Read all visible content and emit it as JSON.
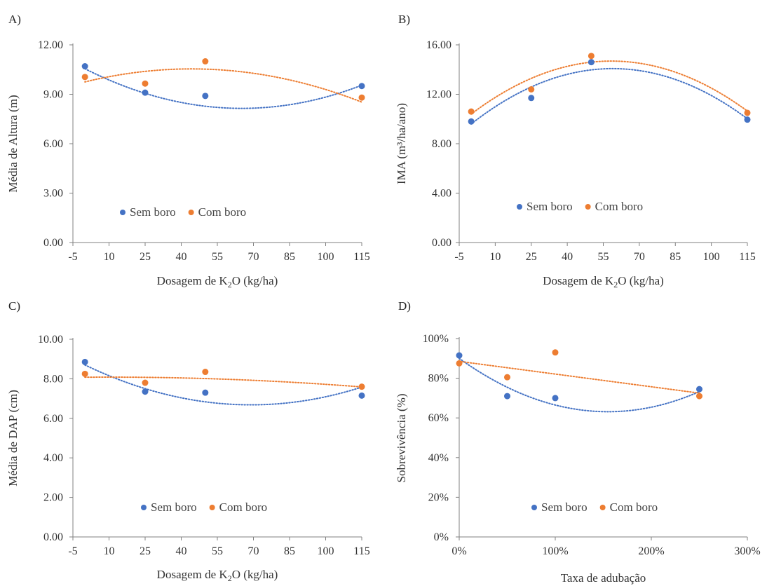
{
  "colors": {
    "sem_boro": "#4472C4",
    "com_boro": "#ED7D31",
    "axis": "#808080"
  },
  "chart_data": [
    {
      "panel": "A)",
      "type": "scatter",
      "xlabel": "Dosagem de K2O (kg/ha)",
      "ylabel": "Média de Altura (m)",
      "xlim": [
        -5,
        115
      ],
      "ylim": [
        0,
        12
      ],
      "x_ticks": [
        "-5",
        "10",
        "25",
        "40",
        "55",
        "70",
        "85",
        "100",
        "115"
      ],
      "x_tick_values": [
        -5,
        10,
        25,
        40,
        55,
        70,
        85,
        100,
        115
      ],
      "y_ticks": [
        "0.00",
        "3.00",
        "6.00",
        "9.00",
        "12.00"
      ],
      "y_tick_values": [
        0,
        3,
        6,
        9,
        12
      ],
      "legend": "bottom",
      "series": [
        {
          "name": "Sem boro",
          "x": [
            0,
            25,
            50,
            115
          ],
          "y": [
            10.7,
            9.1,
            8.9,
            9.5
          ],
          "trend": [
            10.55,
            -0.0738,
            0.000566
          ]
        },
        {
          "name": "Com boro",
          "x": [
            0,
            25,
            50,
            115
          ],
          "y": [
            10.05,
            9.65,
            11.0,
            8.8
          ],
          "trend": [
            9.75,
            0.0357,
            -0.000403
          ]
        }
      ]
    },
    {
      "panel": "B)",
      "type": "scatter",
      "xlabel": "Dosagem de K2O (kg/ha)",
      "ylabel": "IMA  (m³/ha/ano)",
      "xlim": [
        -5,
        115
      ],
      "ylim": [
        0,
        16
      ],
      "x_ticks": [
        "-5",
        "10",
        "25",
        "40",
        "55",
        "70",
        "85",
        "100",
        "115"
      ],
      "x_tick_values": [
        -5,
        10,
        25,
        40,
        55,
        70,
        85,
        100,
        115
      ],
      "y_ticks": [
        "0.00",
        "4.00",
        "8.00",
        "12.00",
        "16.00"
      ],
      "y_tick_values": [
        0,
        4,
        8,
        12,
        16
      ],
      "legend": "bottom",
      "series": [
        {
          "name": "Sem boro",
          "x": [
            0,
            25,
            50,
            115
          ],
          "y": [
            9.8,
            11.7,
            14.6,
            9.95
          ],
          "trend": [
            9.6,
            0.152,
            -0.00129
          ]
        },
        {
          "name": "Com boro",
          "x": [
            0,
            25,
            50,
            115
          ],
          "y": [
            10.6,
            12.4,
            15.1,
            10.5
          ],
          "trend": [
            10.4,
            0.147,
            -0.00126
          ]
        }
      ]
    },
    {
      "panel": "C)",
      "type": "scatter",
      "xlabel": "Dosagem de K2O (kg/ha)",
      "ylabel": "Média de DAP (cm)",
      "xlim": [
        -5,
        115
      ],
      "ylim": [
        0,
        10
      ],
      "x_ticks": [
        "-5",
        "10",
        "25",
        "40",
        "55",
        "70",
        "85",
        "100",
        "115"
      ],
      "x_tick_values": [
        -5,
        10,
        25,
        40,
        55,
        70,
        85,
        100,
        115
      ],
      "y_ticks": [
        "0.00",
        "2.00",
        "4.00",
        "6.00",
        "8.00",
        "10.00"
      ],
      "y_tick_values": [
        0,
        2,
        4,
        6,
        8,
        10
      ],
      "legend": "bottom",
      "series": [
        {
          "name": "Sem boro",
          "x": [
            0,
            25,
            50,
            115
          ],
          "y": [
            8.85,
            7.35,
            7.3,
            7.15
          ],
          "trend": [
            8.7,
            -0.0585,
            0.000424
          ]
        },
        {
          "name": "Com boro",
          "x": [
            0,
            25,
            50,
            115
          ],
          "y": [
            8.25,
            7.8,
            8.35,
            7.6
          ],
          "trend": [
            8.08,
            0.0009,
            -4.5e-05
          ]
        }
      ]
    },
    {
      "panel": "D)",
      "type": "scatter",
      "xlabel": "Taxa de adubação",
      "ylabel": "Sobrevivência (%)",
      "xlim": [
        0,
        3
      ],
      "ylim": [
        0,
        1
      ],
      "x_ticks": [
        "0%",
        "100%",
        "200%",
        "300%"
      ],
      "x_tick_values": [
        0,
        1,
        2,
        3
      ],
      "y_ticks": [
        "0%",
        "20%",
        "40%",
        "60%",
        "80%",
        "100%"
      ],
      "y_tick_values": [
        0,
        0.2,
        0.4,
        0.6,
        0.8,
        1.0
      ],
      "legend": "bottom",
      "series": [
        {
          "name": "Sem boro",
          "x": [
            0,
            0.5,
            1.0,
            2.5
          ],
          "y": [
            0.915,
            0.71,
            0.7,
            0.745
          ],
          "trend": [
            0.9,
            -0.347,
            0.112
          ]
        },
        {
          "name": "Com boro",
          "x": [
            0,
            0.5,
            1.0,
            2.5
          ],
          "y": [
            0.875,
            0.805,
            0.93,
            0.71
          ],
          "trend": [
            0.885,
            -0.064,
            0
          ]
        }
      ]
    }
  ]
}
